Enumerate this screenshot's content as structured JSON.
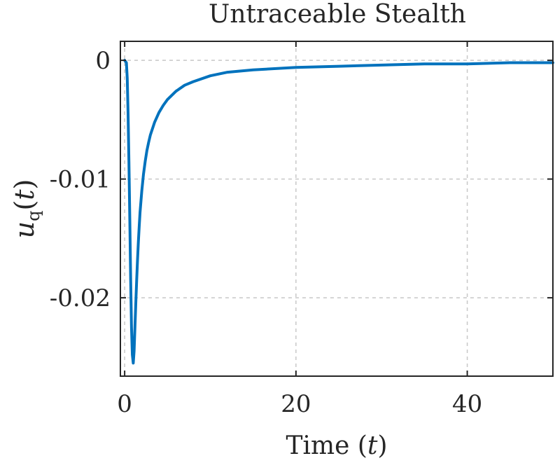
{
  "chart_data": {
    "type": "line",
    "title": "Untraceable Stealth",
    "xlabel": "Time (t)",
    "xlabel_parts": {
      "text": "Time ",
      "open": "(",
      "var": "t",
      "close": ")"
    },
    "ylabel": "u_q(t)",
    "ylabel_parts": {
      "var": "u",
      "sub": "q",
      "open": "(",
      "arg": "t",
      "close": ")"
    },
    "xlim": [
      -0.5,
      50
    ],
    "ylim": [
      -0.0266,
      0.0016
    ],
    "xticks": [
      0,
      20,
      40
    ],
    "xtick_labels": [
      "0",
      "20",
      "40"
    ],
    "yticks": [
      0,
      -0.01,
      -0.02
    ],
    "ytick_labels": [
      "0",
      "-0.01",
      "-0.02"
    ],
    "grid": true,
    "line_color": "#0072BD",
    "series": [
      {
        "x": [
          0,
          0.2,
          0.3,
          0.4,
          0.5,
          0.6,
          0.7,
          0.8,
          0.9,
          1.0,
          1.1,
          1.2,
          1.3,
          1.4,
          1.5,
          1.6,
          1.7,
          1.8,
          2.0,
          2.2,
          2.4,
          2.6,
          2.8,
          3.0,
          3.5,
          4.0,
          4.5,
          5.0,
          6.0,
          7.0,
          8.0,
          10.0,
          12.0,
          15.0,
          20.0,
          25.0,
          30.0,
          35.0,
          40.0,
          45.0,
          50.0
        ],
        "y": [
          0,
          -0.0002,
          -0.0015,
          -0.0045,
          -0.0085,
          -0.0135,
          -0.0185,
          -0.0225,
          -0.0248,
          -0.0255,
          -0.0245,
          -0.0225,
          -0.0205,
          -0.0185,
          -0.0168,
          -0.0153,
          -0.014,
          -0.0128,
          -0.011,
          -0.0096,
          -0.0085,
          -0.0076,
          -0.0069,
          -0.0063,
          -0.0052,
          -0.0044,
          -0.0038,
          -0.0033,
          -0.0026,
          -0.0021,
          -0.0018,
          -0.0013,
          -0.001,
          -0.0008,
          -0.0006,
          -0.0005,
          -0.0004,
          -0.0003,
          -0.0003,
          -0.0002,
          -0.0002
        ]
      }
    ]
  }
}
